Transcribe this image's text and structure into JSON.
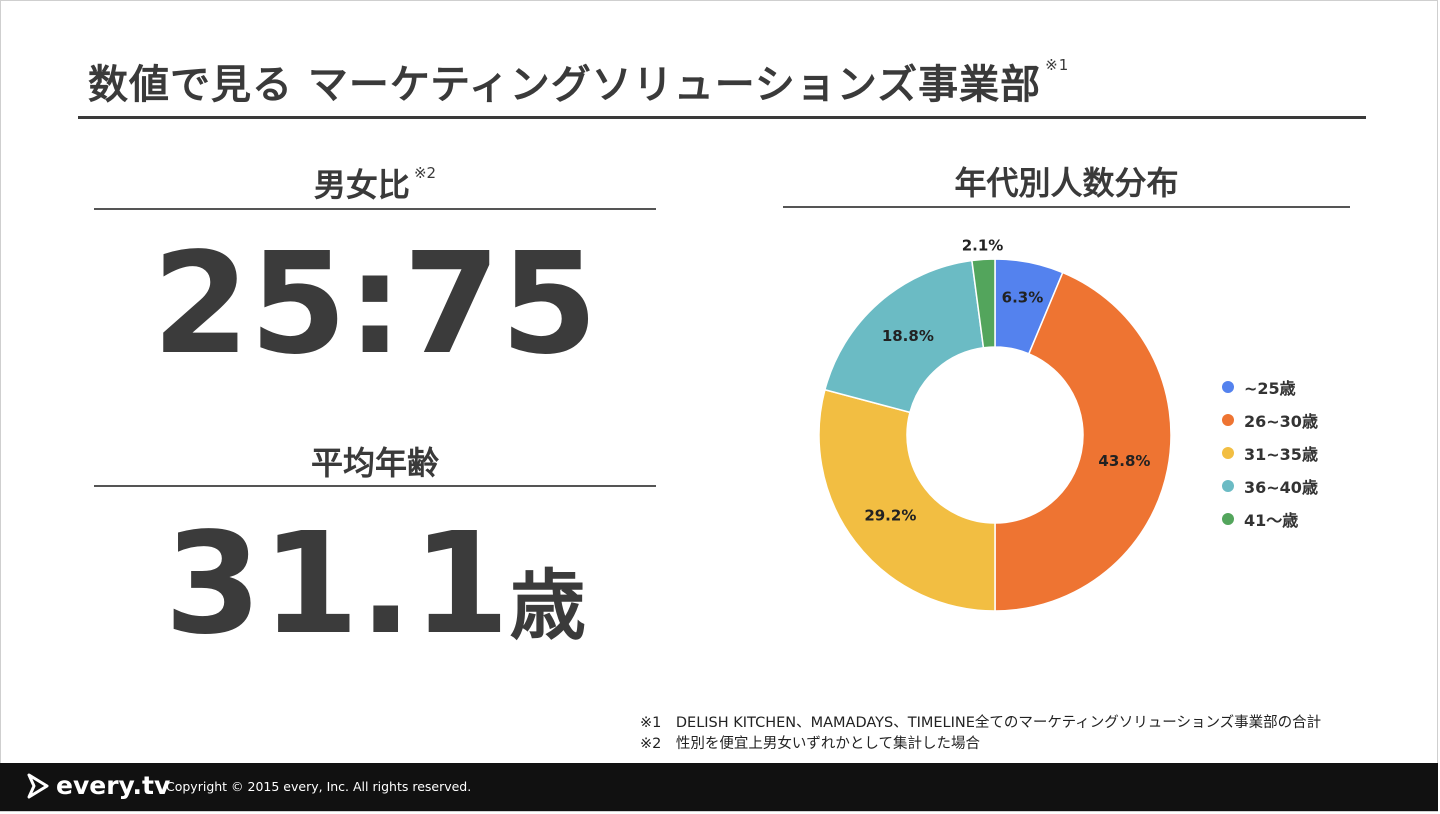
{
  "header": {
    "title": "数値で見る マーケティングソリューションズ事業部",
    "title_note": "※1"
  },
  "gender": {
    "title": "男女比",
    "note": "※2",
    "value": "25:75"
  },
  "age": {
    "title": "平均年齢",
    "value": "31.1",
    "unit": "歳"
  },
  "chart_data": {
    "type": "pie",
    "style": "donut",
    "title": "年代別人数分布",
    "categories": [
      "~25歳",
      "26~30歳",
      "31~35歳",
      "36~40歳",
      "41～歳"
    ],
    "values": [
      6.3,
      43.8,
      29.2,
      18.8,
      2.1
    ],
    "labels": [
      "6.3%",
      "43.8%",
      "29.2%",
      "18.8%",
      "2.1%"
    ],
    "colors": [
      "#5482EE",
      "#EE7432",
      "#F2BE42",
      "#6BBBC4",
      "#53A55C"
    ],
    "legend_position": "right"
  },
  "footnotes": [
    "※1　DELISH KITCHEN、MAMADAYS、TIMELINE全てのマーケティングソリューションズ事業部の合計",
    "※2　性別を便宜上男女いずれかとして集計した場合"
  ],
  "footer": {
    "logo_text": "every.tv",
    "copyright": "Copyright © 2015 every, Inc. All rights reserved."
  }
}
